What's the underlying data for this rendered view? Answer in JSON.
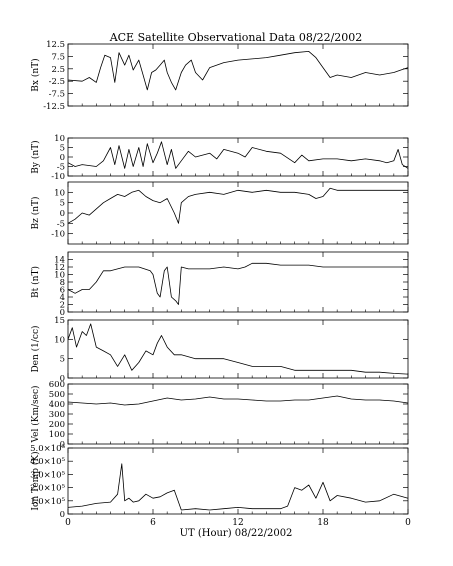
{
  "chart_data": {
    "type": "line",
    "title": "ACE Satellite Observational Data  08/22/2002",
    "xlabel": "UT (Hour)  08/22/2002",
    "x_ticks": [
      "0",
      "6",
      "12",
      "18",
      "0"
    ],
    "xlim": [
      0,
      24
    ],
    "x_tick_values": [
      0,
      6,
      12,
      18,
      24
    ],
    "grid": false,
    "panels": [
      {
        "ylabel": "Bx (nT)",
        "ylim": [
          -12.5,
          12.5
        ],
        "y_tick_values": [
          -12.5,
          -7.5,
          -2.5,
          2.5,
          7.5,
          12.5
        ],
        "y_tick_labels": [
          "-12.5",
          "-7.5",
          "-2.5",
          "2.5",
          "7.5",
          "12.5"
        ],
        "series": [
          {
            "x": [
              0,
              1,
              1.5,
              2,
              2.3,
              2.6,
              3,
              3.3,
              3.6,
              4,
              4.3,
              4.6,
              5,
              5.3,
              5.6,
              5.9,
              6.2,
              6.5,
              6.8,
              7,
              7.3,
              7.6,
              8,
              8.3,
              8.7,
              9,
              9.5,
              10,
              11,
              12,
              13,
              14,
              15,
              16,
              17,
              17.5,
              18,
              18.5,
              19,
              20,
              21,
              22,
              23,
              23.5,
              24
            ],
            "y": [
              -2,
              -2.5,
              -1,
              -3,
              3,
              8,
              7,
              -3,
              9,
              4,
              8,
              2,
              6,
              0,
              -6,
              1,
              2,
              4,
              6,
              1,
              -3,
              -6,
              1,
              4,
              6,
              1,
              -2,
              3,
              5,
              6,
              6.5,
              7,
              8,
              9,
              9.5,
              7,
              3,
              -1,
              0,
              -1,
              1,
              0,
              1,
              2,
              3
            ]
          }
        ]
      },
      {
        "ylabel": "By (nT)",
        "ylim": [
          -10,
          10
        ],
        "y_tick_values": [
          -10,
          -5,
          0,
          5,
          10
        ],
        "y_tick_labels": [
          "-10",
          "-5",
          "0",
          "5",
          "10"
        ],
        "series": [
          {
            "x": [
              0,
              0.5,
              1,
              2,
              2.5,
              3,
              3.3,
              3.6,
              4,
              4.3,
              4.6,
              5,
              5.3,
              5.6,
              6,
              6.3,
              6.6,
              7,
              7.3,
              7.6,
              8,
              8.5,
              9,
              10,
              10.5,
              11,
              12,
              12.5,
              13,
              14,
              15,
              16,
              16.5,
              17,
              18,
              19,
              20,
              21,
              22,
              22.5,
              23,
              23.3,
              23.6,
              24
            ],
            "y": [
              -3,
              -5,
              -4,
              -5,
              -2,
              5,
              -4,
              6,
              -6,
              4,
              -5,
              5,
              -5,
              7,
              -3,
              2,
              8,
              -4,
              4,
              -6,
              -2,
              3,
              0,
              2,
              -1,
              4,
              2,
              0,
              5,
              3,
              2,
              -3,
              1,
              -2,
              -1,
              -1,
              -2,
              -1,
              -2,
              -3,
              -2,
              4,
              -4,
              -6
            ]
          }
        ]
      },
      {
        "ylabel": "Bz (nT)",
        "ylim": [
          -15,
          15
        ],
        "y_tick_values": [
          -10,
          -5,
          0,
          5,
          10
        ],
        "y_tick_labels": [
          "-10",
          "-5",
          "0",
          "5",
          "10"
        ],
        "series": [
          {
            "x": [
              0,
              0.5,
              1,
              1.5,
              2,
              2.5,
              3,
              3.5,
              4,
              4.5,
              5,
              5.5,
              6,
              6.5,
              7,
              7.5,
              7.8,
              8,
              8.5,
              9,
              10,
              11,
              12,
              13,
              14,
              15,
              16,
              17,
              17.5,
              18,
              18.5,
              19,
              20,
              21,
              22,
              23,
              24
            ],
            "y": [
              -5,
              -3,
              0,
              -1,
              2,
              5,
              7,
              9,
              8,
              10,
              11,
              8,
              6,
              5,
              7,
              0,
              -5,
              5,
              8,
              9,
              10,
              9,
              11,
              10,
              11,
              10,
              10,
              9,
              7,
              8,
              12,
              11,
              11,
              11,
              11,
              11,
              11
            ]
          }
        ]
      },
      {
        "ylabel": "Bt (nT)",
        "ylim": [
          0,
          16
        ],
        "y_tick_values": [
          0,
          2,
          4,
          6,
          8,
          10,
          12,
          14
        ],
        "y_tick_labels": [
          "0",
          "2",
          "4",
          "6",
          "8",
          "10",
          "12",
          "14"
        ],
        "series": [
          {
            "x": [
              0,
              0.5,
              1,
              1.5,
              2,
              2.5,
              3,
              4,
              5,
              5.8,
              6,
              6.3,
              6.5,
              6.8,
              7,
              7.3,
              7.6,
              7.8,
              8,
              8.5,
              9,
              10,
              11,
              12,
              12.5,
              13,
              14,
              15,
              16,
              17,
              18,
              18.5,
              19,
              20,
              21,
              22,
              23,
              24
            ],
            "y": [
              6,
              5,
              6,
              6,
              8,
              11,
              11,
              12,
              12,
              11,
              10,
              5,
              4,
              11,
              12,
              4,
              3,
              2,
              12,
              11.5,
              11.5,
              11.5,
              12,
              11.5,
              12,
              13,
              13,
              12.5,
              12.5,
              12.5,
              12,
              12,
              12,
              12,
              12,
              12,
              12,
              12
            ]
          }
        ]
      },
      {
        "ylabel": "Den (1/cc)",
        "ylim": [
          0,
          15
        ],
        "y_tick_values": [
          0,
          5,
          10,
          15
        ],
        "y_tick_labels": [
          "0",
          "5",
          "10",
          "15"
        ],
        "series": [
          {
            "x": [
              0,
              0.3,
              0.6,
              1,
              1.3,
              1.6,
              2,
              2.5,
              3,
              3.5,
              4,
              4.5,
              5,
              5.5,
              6,
              6.3,
              6.6,
              7,
              7.5,
              8,
              9,
              10,
              11,
              12,
              13,
              14,
              15,
              16,
              17,
              18,
              19,
              20,
              21,
              22,
              23,
              24
            ],
            "y": [
              10,
              13,
              8,
              12,
              11,
              14,
              8,
              7,
              6,
              3,
              6,
              2,
              4,
              7,
              6,
              9,
              11,
              8,
              6,
              6,
              5,
              5,
              5,
              4,
              3,
              3,
              3,
              2,
              2,
              2,
              2,
              2,
              1.5,
              1.5,
              1.2,
              1
            ]
          }
        ]
      },
      {
        "ylabel": "Vel (Km/sec)",
        "ylim": [
          0,
          600
        ],
        "y_tick_values": [
          0,
          100,
          200,
          300,
          400,
          500,
          600
        ],
        "y_tick_labels": [
          "0",
          "100",
          "200",
          "300",
          "400",
          "500",
          "600"
        ],
        "series": [
          {
            "x": [
              0,
              1,
              2,
              3,
              4,
              5,
              6,
              7,
              8,
              9,
              10,
              11,
              12,
              13,
              14,
              15,
              16,
              17,
              18,
              19,
              20,
              21,
              22,
              23,
              24
            ],
            "y": [
              420,
              410,
              400,
              410,
              390,
              400,
              430,
              460,
              440,
              450,
              470,
              450,
              450,
              440,
              430,
              430,
              440,
              440,
              460,
              480,
              450,
              440,
              440,
              430,
              410
            ]
          }
        ]
      },
      {
        "ylabel": "Ion Temp (K)",
        "ylim": [
          0,
          500000
        ],
        "y_tick_values": [
          0,
          100000,
          200000,
          300000,
          400000,
          500000
        ],
        "y_tick_labels": [
          "0",
          "1.0×10⁵",
          "2.0×10⁵",
          "3.0×10⁵",
          "4.0×10⁵",
          "5.0×10⁵"
        ],
        "series": [
          {
            "x": [
              0,
              1,
              2,
              3,
              3.5,
              3.8,
              4,
              4.3,
              4.6,
              5,
              5.5,
              6,
              6.5,
              7,
              7.5,
              8,
              9,
              10,
              11,
              12,
              13,
              14,
              15,
              15.5,
              16,
              16.5,
              17,
              17.5,
              18,
              18.5,
              19,
              20,
              21,
              22,
              23,
              24
            ],
            "y": [
              50000,
              60000,
              80000,
              90000,
              150000,
              380000,
              100000,
              120000,
              90000,
              100000,
              150000,
              120000,
              130000,
              160000,
              180000,
              30000,
              40000,
              30000,
              40000,
              50000,
              40000,
              40000,
              40000,
              60000,
              200000,
              180000,
              220000,
              120000,
              240000,
              100000,
              140000,
              120000,
              90000,
              100000,
              150000,
              120000
            ]
          }
        ]
      }
    ]
  }
}
